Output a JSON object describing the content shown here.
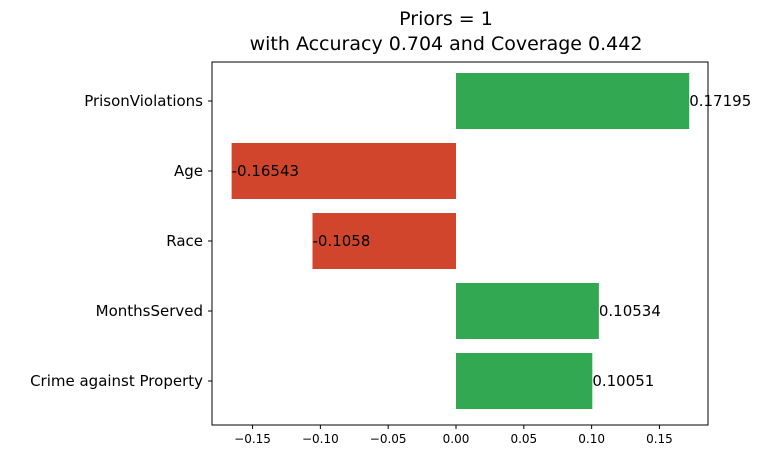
{
  "chart_data": {
    "type": "bar",
    "orientation": "horizontal",
    "title_lines": [
      "Priors = 1",
      "with Accuracy 0.704 and Coverage 0.442"
    ],
    "categories": [
      "PrisonViolations",
      "Age",
      "Race",
      "MonthsServed",
      "Crime against Property"
    ],
    "values": [
      0.17195,
      -0.16543,
      -0.1058,
      0.10534,
      0.10051
    ],
    "value_labels": [
      "0.17195",
      "-0.16543",
      "-0.1058",
      "0.10534",
      "0.10051"
    ],
    "xticks": [
      -0.15,
      -0.1,
      -0.05,
      0.0,
      0.05,
      0.1,
      0.15
    ],
    "xtick_labels": [
      "−0.15",
      "−0.10",
      "−0.05",
      "0.00",
      "0.05",
      "0.10",
      "0.15"
    ],
    "xlim": [
      -0.1799,
      0.1858
    ],
    "colors": {
      "positive": "#33a852",
      "negative": "#d0452b"
    },
    "grid": false,
    "xlabel": "",
    "ylabel": ""
  }
}
